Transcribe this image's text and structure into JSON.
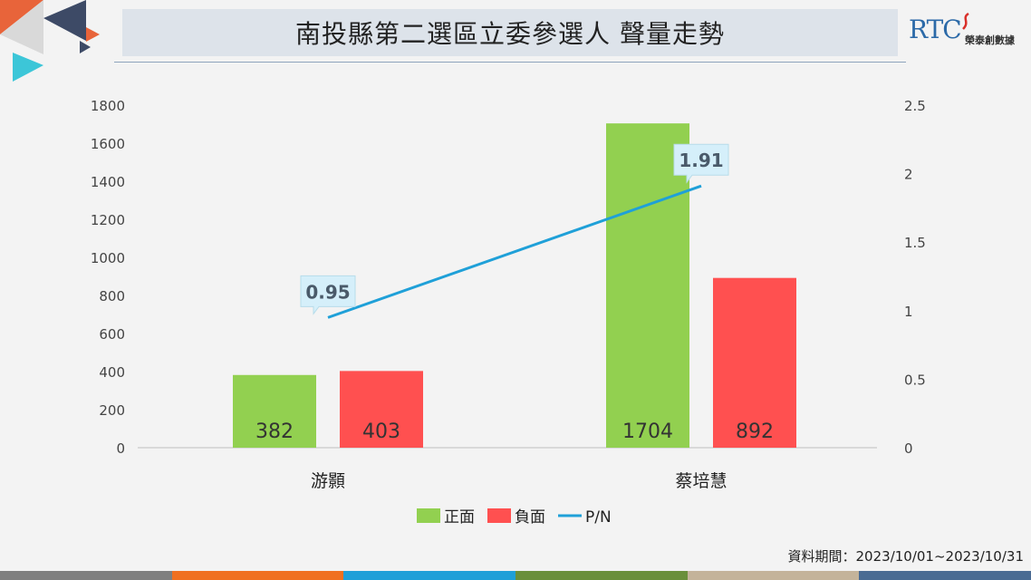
{
  "header": {
    "title": "南投縣第二選區立委參選人 聲量走勢",
    "logo_text": "RTC",
    "logo_sub": "榮泰創數據"
  },
  "source_note": "資料期間：2023/10/01~2023/10/31",
  "colors": {
    "positive": "#92d050",
    "negative": "#ff5050",
    "ratio_line": "#1fa0d8",
    "label_bg": "#d5effa",
    "footer": [
      "#7f7f7f",
      "#f07020",
      "#1f9fd8",
      "#6a8f3a",
      "#c4b39a",
      "#4a6b93"
    ]
  },
  "chart_data": {
    "type": "bar",
    "categories": [
      "游顥",
      "蔡培慧"
    ],
    "series": [
      {
        "name": "正面",
        "type": "bar",
        "axis": "left",
        "values": [
          382,
          1704
        ]
      },
      {
        "name": "負面",
        "type": "bar",
        "axis": "left",
        "values": [
          403,
          892
        ]
      },
      {
        "name": "P/N",
        "type": "line",
        "axis": "right",
        "values": [
          0.95,
          1.91
        ]
      }
    ],
    "y_left": {
      "min": 0,
      "max": 1800,
      "ticks": [
        0,
        200,
        400,
        600,
        800,
        1000,
        1200,
        1400,
        1600,
        1800
      ]
    },
    "y_right": {
      "min": 0,
      "max": 2.5,
      "ticks": [
        "0",
        "0.5",
        "1",
        "1.5",
        "2",
        "2.5"
      ]
    },
    "bar_labels": [
      [
        "382",
        "1704"
      ],
      [
        "403",
        "892"
      ]
    ],
    "line_labels": [
      "0.95",
      "1.91"
    ],
    "legend_position": "bottom",
    "grid": false
  }
}
